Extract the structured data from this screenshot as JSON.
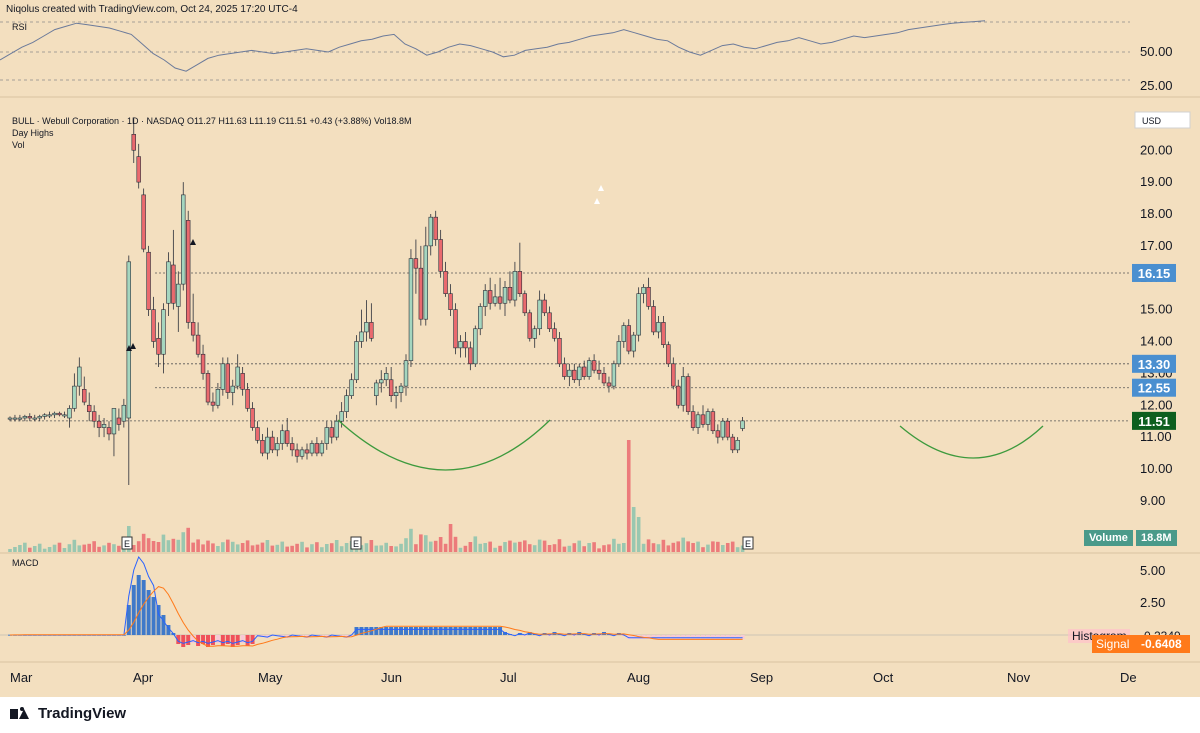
{
  "header": {
    "attribution": "Niqolus created with TradingView.com, Oct 24, 2025 17:20 UTC-4"
  },
  "footer": {
    "brand": "TradingView"
  },
  "legend": {
    "symbol_line": "BULL · Webull Corporation · 1D · NASDAQ  O11.27  H11.63  L11.19  C11.51  +0.43 (+3.88%)  Vol18.8M",
    "indicator_1": "Day Highs",
    "indicator_2": "Vol"
  },
  "rsi": {
    "label": "RSI"
  },
  "macd": {
    "label": "MACD",
    "histogram_label": "Histogram",
    "signal_label": "Signal",
    "signal_value": "-0.6408",
    "value": "-0.2349"
  },
  "volume": {
    "label": "Volume",
    "value": "18.8M"
  },
  "currency": "USD",
  "colors": {
    "up": "#8ac3ad",
    "up_body": "#a5d6bf",
    "down": "#ea6a6e",
    "wick": "#2a2e39",
    "bg": "#f3dfbf",
    "arc": "#3d9a3d",
    "macd_line": "#2962ff",
    "signal_line": "#ff7a1a",
    "hist_up": "#3f79c9",
    "hist_down": "#f0505a",
    "hist_pale": "#f8c9d6",
    "price_badge": "#0d5f1f",
    "level_badge": "#4a8fd0"
  },
  "price_levels": [
    {
      "value": 16.15,
      "label": "16.15"
    },
    {
      "value": 13.3,
      "label": "13.30"
    },
    {
      "value": 12.55,
      "label": "12.55"
    },
    {
      "value": 11.51,
      "label": "11.51"
    }
  ],
  "chart_data": {
    "type": "candlestick",
    "y_axis_ticks": [
      "20.00",
      "19.00",
      "18.00",
      "17.00",
      "16.00",
      "15.00",
      "14.00",
      "13.00",
      "12.00",
      "11.00",
      "10.00",
      "9.00"
    ],
    "rsi_axis_ticks": [
      "50.00",
      "25.00"
    ],
    "macd_axis_ticks": [
      "5.00",
      "2.50"
    ],
    "x_axis_ticks": [
      "Mar",
      "Apr",
      "May",
      "Jun",
      "Jul",
      "Aug",
      "Sep",
      "Oct",
      "Nov",
      "De"
    ],
    "earnings_markers": [
      "E",
      "E",
      "E"
    ],
    "ylim": [
      8.4,
      21.2
    ],
    "ohlc": [
      [
        11.6,
        11.65,
        11.5,
        11.6
      ],
      [
        11.6,
        11.7,
        11.5,
        11.6
      ],
      [
        11.6,
        11.7,
        11.5,
        11.6
      ],
      [
        11.6,
        11.7,
        11.5,
        11.65
      ],
      [
        11.65,
        11.75,
        11.5,
        11.6
      ],
      [
        11.6,
        11.7,
        11.5,
        11.6
      ],
      [
        11.6,
        11.7,
        11.5,
        11.65
      ],
      [
        11.65,
        11.75,
        11.55,
        11.7
      ],
      [
        11.7,
        11.8,
        11.6,
        11.7
      ],
      [
        11.7,
        11.8,
        11.6,
        11.75
      ],
      [
        11.75,
        11.8,
        11.65,
        11.7
      ],
      [
        11.7,
        11.8,
        11.6,
        11.7
      ],
      [
        11.6,
        12.0,
        11.3,
        11.9
      ],
      [
        11.9,
        13.0,
        11.8,
        12.6
      ],
      [
        12.6,
        13.5,
        12.3,
        13.2
      ],
      [
        12.5,
        12.9,
        12.0,
        12.1
      ],
      [
        12.0,
        12.4,
        11.5,
        11.8
      ],
      [
        11.8,
        12.0,
        11.3,
        11.5
      ],
      [
        11.5,
        11.7,
        11.0,
        11.3
      ],
      [
        11.3,
        11.6,
        11.0,
        11.4
      ],
      [
        11.3,
        11.5,
        10.9,
        11.1
      ],
      [
        11.1,
        11.9,
        10.4,
        11.9
      ],
      [
        11.6,
        11.9,
        11.2,
        11.4
      ],
      [
        11.5,
        12.2,
        11.3,
        12.0
      ],
      [
        11.6,
        16.7,
        9.5,
        16.5
      ],
      [
        20.5,
        21.0,
        19.6,
        20.0
      ],
      [
        19.8,
        20.2,
        18.8,
        19.0
      ],
      [
        18.6,
        18.8,
        16.8,
        16.9
      ],
      [
        16.8,
        17.0,
        14.8,
        15.0
      ],
      [
        15.0,
        15.4,
        13.8,
        14.0
      ],
      [
        14.1,
        14.6,
        13.2,
        13.6
      ],
      [
        13.6,
        15.2,
        13.0,
        15.0
      ],
      [
        15.2,
        16.8,
        14.8,
        16.5
      ],
      [
        16.4,
        17.5,
        15.0,
        15.2
      ],
      [
        15.1,
        16.2,
        14.3,
        15.8
      ],
      [
        15.8,
        19.0,
        15.6,
        18.6
      ],
      [
        17.8,
        18.1,
        14.4,
        14.6
      ],
      [
        14.6,
        15.5,
        14.0,
        14.2
      ],
      [
        14.2,
        14.6,
        13.5,
        13.6
      ],
      [
        13.6,
        13.9,
        12.8,
        13.0
      ],
      [
        13.0,
        13.1,
        12.0,
        12.1
      ],
      [
        12.1,
        12.4,
        11.8,
        12.0
      ],
      [
        12.0,
        12.7,
        11.9,
        12.5
      ],
      [
        12.5,
        13.5,
        12.3,
        13.3
      ],
      [
        13.3,
        13.5,
        12.2,
        12.4
      ],
      [
        12.4,
        12.8,
        12.0,
        12.6
      ],
      [
        12.6,
        13.6,
        12.5,
        13.2
      ],
      [
        13.0,
        13.2,
        12.3,
        12.5
      ],
      [
        12.5,
        12.7,
        11.8,
        11.9
      ],
      [
        11.9,
        12.1,
        11.2,
        11.3
      ],
      [
        11.3,
        11.5,
        10.8,
        10.9
      ],
      [
        10.9,
        11.1,
        10.4,
        10.5
      ],
      [
        10.5,
        11.3,
        10.3,
        11.0
      ],
      [
        11.0,
        11.2,
        10.5,
        10.6
      ],
      [
        10.6,
        11.0,
        10.4,
        10.8
      ],
      [
        10.8,
        11.4,
        10.6,
        11.2
      ],
      [
        11.2,
        11.6,
        10.7,
        10.8
      ],
      [
        10.8,
        11.0,
        10.4,
        10.6
      ],
      [
        10.6,
        10.8,
        10.2,
        10.4
      ],
      [
        10.4,
        10.7,
        10.3,
        10.6
      ],
      [
        10.6,
        10.8,
        10.3,
        10.5
      ],
      [
        10.5,
        10.9,
        10.4,
        10.8
      ],
      [
        10.8,
        11.0,
        10.4,
        10.5
      ],
      [
        10.5,
        10.9,
        10.4,
        10.8
      ],
      [
        10.8,
        11.5,
        10.6,
        11.3
      ],
      [
        11.3,
        11.5,
        10.8,
        11.0
      ],
      [
        11.0,
        11.7,
        10.9,
        11.5
      ],
      [
        11.5,
        12.1,
        11.3,
        11.8
      ],
      [
        11.8,
        12.5,
        11.6,
        12.3
      ],
      [
        12.3,
        13.0,
        12.2,
        12.8
      ],
      [
        12.8,
        14.2,
        12.7,
        14.0
      ],
      [
        14.0,
        15.0,
        13.8,
        14.3
      ],
      [
        14.3,
        15.3,
        14.0,
        14.6
      ],
      [
        14.6,
        15.2,
        14.0,
        14.1
      ],
      [
        12.3,
        12.8,
        12.0,
        12.7
      ],
      [
        12.7,
        13.1,
        12.4,
        12.8
      ],
      [
        12.8,
        13.2,
        12.6,
        13.0
      ],
      [
        12.8,
        13.2,
        12.1,
        12.3
      ],
      [
        12.3,
        12.6,
        11.9,
        12.4
      ],
      [
        12.4,
        12.7,
        12.1,
        12.6
      ],
      [
        12.6,
        13.6,
        12.3,
        13.4
      ],
      [
        13.4,
        16.9,
        13.2,
        16.6
      ],
      [
        16.6,
        17.2,
        15.5,
        16.3
      ],
      [
        16.3,
        17.0,
        14.5,
        14.7
      ],
      [
        14.7,
        17.6,
        14.5,
        17.0
      ],
      [
        17.0,
        18.0,
        16.7,
        17.9
      ],
      [
        17.9,
        18.1,
        17.0,
        17.2
      ],
      [
        17.2,
        17.5,
        16.0,
        16.2
      ],
      [
        16.2,
        16.5,
        15.4,
        15.5
      ],
      [
        15.5,
        15.8,
        14.8,
        15.0
      ],
      [
        15.0,
        15.2,
        13.6,
        13.8
      ],
      [
        13.8,
        14.2,
        13.5,
        14.0
      ],
      [
        14.0,
        14.3,
        13.5,
        13.8
      ],
      [
        13.8,
        14.0,
        13.1,
        13.3
      ],
      [
        13.3,
        14.5,
        13.2,
        14.4
      ],
      [
        14.4,
        15.2,
        14.2,
        15.1
      ],
      [
        15.1,
        15.8,
        14.8,
        15.6
      ],
      [
        15.6,
        16.0,
        15.0,
        15.2
      ],
      [
        15.2,
        15.8,
        15.1,
        15.4
      ],
      [
        15.4,
        16.0,
        15.0,
        15.2
      ],
      [
        15.2,
        15.9,
        14.8,
        15.7
      ],
      [
        15.7,
        16.2,
        15.2,
        15.3
      ],
      [
        15.3,
        16.5,
        15.1,
        16.2
      ],
      [
        16.2,
        17.1,
        15.4,
        15.5
      ],
      [
        15.5,
        15.6,
        14.8,
        14.9
      ],
      [
        14.9,
        15.0,
        14.0,
        14.1
      ],
      [
        14.1,
        14.5,
        13.8,
        14.4
      ],
      [
        14.4,
        15.6,
        14.2,
        15.3
      ],
      [
        15.3,
        15.5,
        14.8,
        14.9
      ],
      [
        14.9,
        15.1,
        14.3,
        14.4
      ],
      [
        14.4,
        14.6,
        14.0,
        14.1
      ],
      [
        14.1,
        14.3,
        13.2,
        13.3
      ],
      [
        13.3,
        13.5,
        12.8,
        12.9
      ],
      [
        12.9,
        13.3,
        12.6,
        13.1
      ],
      [
        13.1,
        13.3,
        12.7,
        12.8
      ],
      [
        12.8,
        13.3,
        12.6,
        13.2
      ],
      [
        13.2,
        13.4,
        12.8,
        12.9
      ],
      [
        12.9,
        13.5,
        12.8,
        13.4
      ],
      [
        13.4,
        13.6,
        13.0,
        13.1
      ],
      [
        13.1,
        13.4,
        12.8,
        13.0
      ],
      [
        13.0,
        13.2,
        12.6,
        12.7
      ],
      [
        12.7,
        12.9,
        12.4,
        12.6
      ],
      [
        12.6,
        13.4,
        12.5,
        13.3
      ],
      [
        13.3,
        14.2,
        13.2,
        14.0
      ],
      [
        14.0,
        14.6,
        13.8,
        14.5
      ],
      [
        14.5,
        14.7,
        13.6,
        13.7
      ],
      [
        13.7,
        14.3,
        13.5,
        14.2
      ],
      [
        14.2,
        15.7,
        14.0,
        15.5
      ],
      [
        15.5,
        15.8,
        15.2,
        15.7
      ],
      [
        15.7,
        16.0,
        15.0,
        15.1
      ],
      [
        15.1,
        15.3,
        14.2,
        14.3
      ],
      [
        14.3,
        14.8,
        14.1,
        14.6
      ],
      [
        14.6,
        14.8,
        13.8,
        13.9
      ],
      [
        13.9,
        14.0,
        13.2,
        13.3
      ],
      [
        13.3,
        13.5,
        12.5,
        12.6
      ],
      [
        12.6,
        12.8,
        11.9,
        12.0
      ],
      [
        12.0,
        13.2,
        11.8,
        12.9
      ],
      [
        12.9,
        13.0,
        11.7,
        11.8
      ],
      [
        11.8,
        12.0,
        11.2,
        11.3
      ],
      [
        11.3,
        11.8,
        11.1,
        11.7
      ],
      [
        11.7,
        12.0,
        11.3,
        11.4
      ],
      [
        11.4,
        11.9,
        11.2,
        11.8
      ],
      [
        11.8,
        11.9,
        11.1,
        11.2
      ],
      [
        11.2,
        11.4,
        10.8,
        11.0
      ],
      [
        11.0,
        11.6,
        10.9,
        11.5
      ],
      [
        11.5,
        11.6,
        10.9,
        11.0
      ],
      [
        11.0,
        11.1,
        10.5,
        10.6
      ],
      [
        10.6,
        11.0,
        10.5,
        10.9
      ],
      [
        11.27,
        11.63,
        11.19,
        11.51
      ]
    ],
    "note": "Daily OHLC for BULL (Webull Corporation), Mar–Oct 2025, estimated from the chart."
  }
}
